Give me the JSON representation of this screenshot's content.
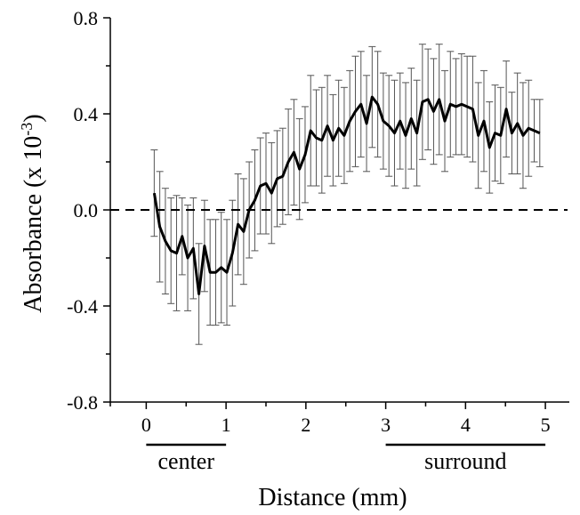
{
  "chart_data": {
    "type": "line",
    "xlabel": "Distance (mm)",
    "ylabel_prefix": "Absorbance (x 10",
    "ylabel_exponent": "-3",
    "ylabel_suffix": ")",
    "xlim": [
      -0.45,
      5.3
    ],
    "ylim": [
      -0.8,
      0.8
    ],
    "xticks": [
      0,
      1,
      2,
      3,
      4,
      5
    ],
    "xtick_labels": [
      "0",
      "1",
      "2",
      "3",
      "4",
      "5"
    ],
    "yticks": [
      -0.8,
      -0.4,
      0.0,
      0.4,
      0.8
    ],
    "ytick_labels": [
      "-0.8",
      "-0.4",
      "0.0",
      "0.4",
      "0.8"
    ],
    "reference_line": {
      "y": 0,
      "style": "dashed"
    },
    "regions": [
      {
        "label": "center",
        "x_start": 0.0,
        "x_end": 1.0
      },
      {
        "label": "surround",
        "x_start": 3.0,
        "x_end": 5.0
      }
    ],
    "colors": {
      "line": "#000000",
      "error_bars": "#555555",
      "axes": "#000000"
    },
    "series": [
      {
        "x": [
          0.1,
          0.17,
          0.24,
          0.31,
          0.38,
          0.45,
          0.52,
          0.59,
          0.66,
          0.73,
          0.8,
          0.87,
          0.94,
          1.01,
          1.08,
          1.15,
          1.22,
          1.29,
          1.36,
          1.43,
          1.5,
          1.57,
          1.64,
          1.71,
          1.78,
          1.85,
          1.92,
          1.99,
          2.06,
          2.13,
          2.2,
          2.27,
          2.34,
          2.41,
          2.48,
          2.55,
          2.62,
          2.69,
          2.76,
          2.83,
          2.9,
          2.97,
          3.04,
          3.11,
          3.18,
          3.25,
          3.32,
          3.39,
          3.46,
          3.53,
          3.6,
          3.67,
          3.74,
          3.81,
          3.88,
          3.95,
          4.02,
          4.09,
          4.16,
          4.23,
          4.3,
          4.37,
          4.44,
          4.51,
          4.58,
          4.65,
          4.72,
          4.79,
          4.86,
          4.93
        ],
        "y": [
          0.07,
          -0.07,
          -0.13,
          -0.17,
          -0.18,
          -0.11,
          -0.2,
          -0.16,
          -0.35,
          -0.15,
          -0.26,
          -0.26,
          -0.24,
          -0.26,
          -0.18,
          -0.06,
          -0.09,
          0.0,
          0.04,
          0.1,
          0.11,
          0.07,
          0.13,
          0.14,
          0.2,
          0.24,
          0.17,
          0.23,
          0.33,
          0.3,
          0.29,
          0.35,
          0.29,
          0.34,
          0.31,
          0.37,
          0.41,
          0.44,
          0.36,
          0.47,
          0.44,
          0.37,
          0.35,
          0.32,
          0.37,
          0.31,
          0.38,
          0.32,
          0.45,
          0.46,
          0.41,
          0.46,
          0.37,
          0.44,
          0.43,
          0.44,
          0.43,
          0.42,
          0.31,
          0.37,
          0.26,
          0.32,
          0.31,
          0.42,
          0.32,
          0.36,
          0.31,
          0.34,
          0.33,
          0.32
        ],
        "error": [
          0.18,
          0.23,
          0.22,
          0.22,
          0.24,
          0.16,
          0.22,
          0.21,
          0.21,
          0.19,
          0.22,
          0.22,
          0.23,
          0.22,
          0.22,
          0.21,
          0.22,
          0.2,
          0.21,
          0.2,
          0.21,
          0.21,
          0.2,
          0.2,
          0.22,
          0.22,
          0.21,
          0.2,
          0.23,
          0.2,
          0.22,
          0.21,
          0.19,
          0.2,
          0.2,
          0.21,
          0.23,
          0.22,
          0.2,
          0.21,
          0.22,
          0.2,
          0.21,
          0.22,
          0.2,
          0.22,
          0.21,
          0.22,
          0.24,
          0.21,
          0.22,
          0.23,
          0.21,
          0.22,
          0.2,
          0.21,
          0.21,
          0.22,
          0.22,
          0.21,
          0.19,
          0.2,
          0.2,
          0.2,
          0.17,
          0.21,
          0.22,
          0.2,
          0.13,
          0.14
        ]
      }
    ]
  }
}
